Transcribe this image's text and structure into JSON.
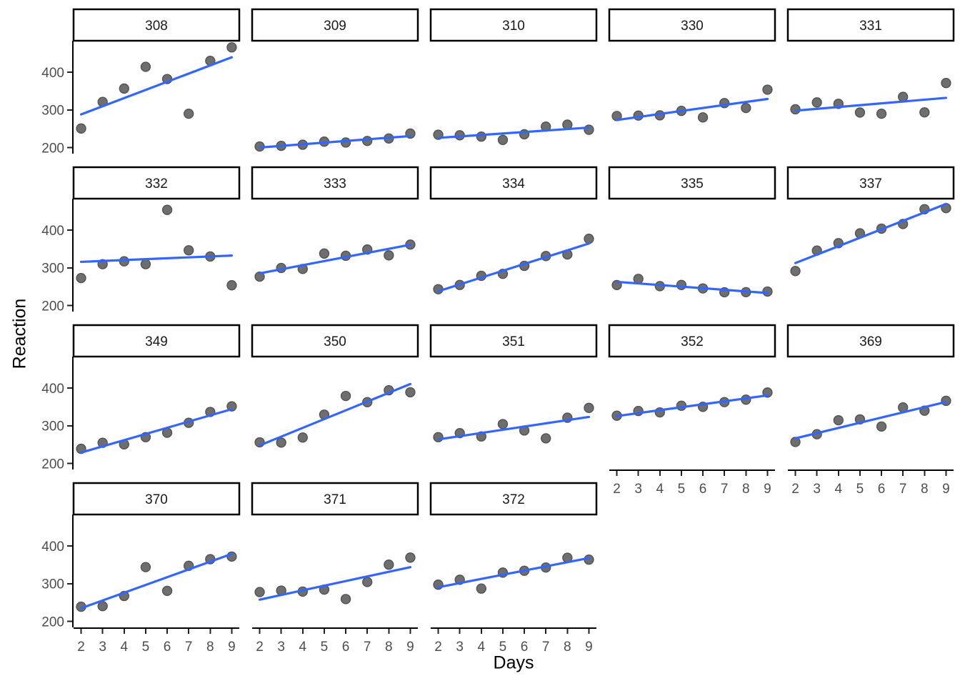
{
  "chart_data": {
    "type": "scatter",
    "title": "",
    "xlabel": "Days",
    "ylabel": "Reaction",
    "x": [
      2,
      3,
      4,
      5,
      6,
      7,
      8,
      9
    ],
    "x_ticks": [
      2,
      3,
      4,
      5,
      6,
      7,
      8,
      9
    ],
    "y_ticks": [
      200,
      300,
      400
    ],
    "xlim": [
      1.65,
      9.35
    ],
    "ylim": [
      184,
      484
    ],
    "grid": false,
    "legend": "none",
    "layout": {
      "rows": 4,
      "cols": 5,
      "strip_position": "top"
    },
    "fit": "per-facet ordinary least squares line drawn from x=2 to x=9",
    "facets": [
      {
        "label": "308",
        "values": [
          250.8,
          321.4,
          356.9,
          414.7,
          382.2,
          290.1,
          430.6,
          466.4
        ]
      },
      {
        "label": "309",
        "values": [
          203.0,
          204.7,
          207.7,
          216.0,
          213.6,
          217.7,
          224.3,
          237.3
        ]
      },
      {
        "label": "310",
        "values": [
          234.3,
          232.8,
          229.3,
          220.5,
          235.4,
          255.8,
          261.0,
          247.5
        ]
      },
      {
        "label": "330",
        "values": [
          283.9,
          285.1,
          285.8,
          297.6,
          280.2,
          318.3,
          305.3,
          354.0
        ]
      },
      {
        "label": "331",
        "values": [
          301.8,
          320.1,
          316.3,
          293.3,
          290.1,
          334.8,
          293.7,
          371.6
        ]
      },
      {
        "label": "332",
        "values": [
          273.0,
          309.8,
          317.5,
          310.0,
          454.2,
          346.8,
          330.3,
          253.9
        ]
      },
      {
        "label": "333",
        "values": [
          276.8,
          299.8,
          297.2,
          338.2,
          332.3,
          348.8,
          333.4,
          362.0
        ]
      },
      {
        "label": "334",
        "values": [
          243.4,
          254.7,
          279.0,
          284.2,
          305.5,
          331.5,
          335.7,
          377.3
        ]
      },
      {
        "label": "335",
        "values": [
          254.5,
          270.8,
          251.5,
          254.6,
          245.5,
          235.3,
          235.5,
          237.2
        ]
      },
      {
        "label": "337",
        "values": [
          291.6,
          346.1,
          365.7,
          391.8,
          404.3,
          416.7,
          455.9,
          458.9
        ]
      },
      {
        "label": "349",
        "values": [
          238.9,
          254.9,
          250.7,
          269.9,
          281.6,
          308.1,
          336.9,
          351.7
        ]
      },
      {
        "label": "350",
        "values": [
          256.2,
          255.5,
          268.9,
          329.7,
          379.4,
          362.9,
          394.5,
          389.1
        ]
      },
      {
        "label": "351",
        "values": [
          269.9,
          280.6,
          271.8,
          304.6,
          287.7,
          266.8,
          321.5,
          347.6
        ]
      },
      {
        "label": "352",
        "values": [
          326.9,
          339.4,
          335.7,
          353.4,
          350.5,
          363.0,
          369.5,
          388.5
        ]
      },
      {
        "label": "369",
        "values": [
          257.2,
          277.7,
          314.8,
          317.2,
          298.2,
          348.8,
          340.3,
          366.5
        ]
      },
      {
        "label": "370",
        "values": [
          238.9,
          240.5,
          267.5,
          344.2,
          281.1,
          347.6,
          365.2,
          372.2
        ]
      },
      {
        "label": "371",
        "values": [
          277.9,
          281.8,
          279.2,
          284.5,
          259.3,
          304.6,
          350.8,
          369.5
        ]
      },
      {
        "label": "372",
        "values": [
          297.6,
          310.6,
          287.2,
          329.6,
          334.5,
          343.2,
          369.1,
          364.1
        ]
      }
    ],
    "colors": {
      "background": "#ffffff",
      "point_fill": "#6e6e6e",
      "point_stroke": "#4f4f4f",
      "smooth_line": "#3366FF",
      "axis_line": "#000000",
      "tick_label": "#4d4d4d",
      "strip_border": "#000000",
      "strip_background": "#ffffff",
      "strip_text": "#1a1a1a",
      "axis_title": "#000000"
    }
  }
}
